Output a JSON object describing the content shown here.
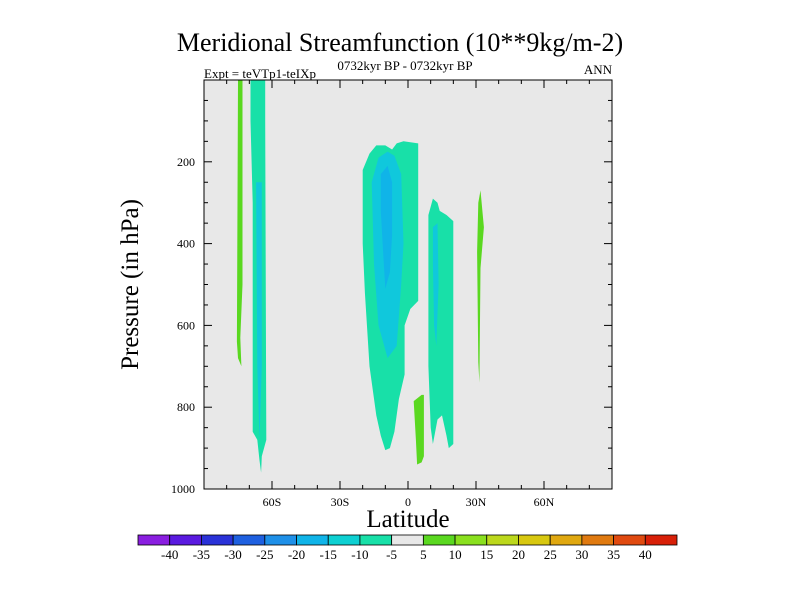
{
  "chart_data": {
    "type": "contour",
    "title": "Meridional Streamfunction (10**9kg/m-2)",
    "left_string": "Expt = teVTp1-teIXp",
    "center_string": "0732kyr BP - 0732kyr BP",
    "right_string": "ANN",
    "xlabel": "Latitude",
    "ylabel": "Pressure (in hPa)",
    "xlim": [
      -90,
      90
    ],
    "ylim": [
      1000,
      0
    ],
    "x_ticks": [
      {
        "value": -60,
        "label": "60S"
      },
      {
        "value": -30,
        "label": "30S"
      },
      {
        "value": 0,
        "label": "0"
      },
      {
        "value": 30,
        "label": "30N"
      },
      {
        "value": 60,
        "label": "60N"
      }
    ],
    "y_ticks": [
      {
        "value": 200,
        "label": "200"
      },
      {
        "value": 400,
        "label": "400"
      },
      {
        "value": 600,
        "label": "600"
      },
      {
        "value": 800,
        "label": "800"
      },
      {
        "value": 1000,
        "label": "1000"
      }
    ],
    "background_color": "#e8e8e8",
    "colorbar": {
      "labels": [
        "-40",
        "-35",
        "-30",
        "-25",
        "-20",
        "-15",
        "-10",
        "-5",
        "5",
        "10",
        "15",
        "20",
        "25",
        "30",
        "35",
        "40"
      ],
      "colors": [
        "#8a1ee0",
        "#5a1ae0",
        "#2a32d8",
        "#1e60e0",
        "#1e90e8",
        "#10b4e8",
        "#0ed0d2",
        "#18e0a8",
        "#e8e8e8",
        "#5ad820",
        "#8ae01e",
        "#bcd81c",
        "#d8c810",
        "#e0a810",
        "#e07a10",
        "#e04a10",
        "#d82008"
      ]
    },
    "regions": [
      {
        "name": "green-band-70s",
        "level": "5 to 10",
        "color": "#5ad820",
        "points": [
          [
            -75,
            0
          ],
          [
            -73,
            0
          ],
          [
            -73,
            500
          ],
          [
            -74,
            630
          ],
          [
            -73.5,
            700
          ],
          [
            -75,
            680
          ],
          [
            -75.5,
            640
          ]
        ]
      },
      {
        "name": "cyan-band-65s",
        "level": "-5 to -10",
        "color": "#18e0a8",
        "points": [
          [
            -69.5,
            0
          ],
          [
            -63,
            0
          ],
          [
            -63,
            100
          ],
          [
            -62.5,
            880
          ],
          [
            -64.5,
            920
          ],
          [
            -64.8,
            960
          ],
          [
            -65.5,
            930
          ],
          [
            -66.5,
            880
          ],
          [
            -68.5,
            860
          ],
          [
            -68.5,
            300
          ],
          [
            -69.5,
            100
          ]
        ]
      },
      {
        "name": "blue-core-65s",
        "level": "-10 to -15",
        "color": "#10c8dc",
        "points": [
          [
            -67,
            250
          ],
          [
            -64.5,
            250
          ],
          [
            -64.5,
            700
          ],
          [
            -65.5,
            880
          ],
          [
            -66.5,
            700
          ]
        ]
      },
      {
        "name": "cyan-cell-10s",
        "level": "-5 to -10",
        "color": "#18e0a8",
        "points": [
          [
            -20,
            220
          ],
          [
            -17,
            180
          ],
          [
            -14,
            160
          ],
          [
            -10,
            160
          ],
          [
            -7,
            170
          ],
          [
            -5,
            155
          ],
          [
            -2,
            150
          ],
          [
            4.5,
            155
          ],
          [
            4.5,
            540
          ],
          [
            1,
            560
          ],
          [
            -1.5,
            600
          ],
          [
            -1.5,
            720
          ],
          [
            -4,
            780
          ],
          [
            -6,
            860
          ],
          [
            -8,
            900
          ],
          [
            -10,
            905
          ],
          [
            -12,
            870
          ],
          [
            -14,
            820
          ],
          [
            -17,
            700
          ],
          [
            -19,
            520
          ],
          [
            -20,
            400
          ]
        ]
      },
      {
        "name": "blue-cell-10s",
        "level": "-10 to -15",
        "color": "#10c8dc",
        "points": [
          [
            -16,
            250
          ],
          [
            -13,
            190
          ],
          [
            -9,
            175
          ],
          [
            -6,
            185
          ],
          [
            -3,
            230
          ],
          [
            -2,
            400
          ],
          [
            -3,
            500
          ],
          [
            -5,
            650
          ],
          [
            -9,
            680
          ],
          [
            -13,
            600
          ],
          [
            -15,
            450
          ]
        ]
      },
      {
        "name": "deep-blue-core-10s",
        "level": "-15 to -20",
        "color": "#10b4e8",
        "points": [
          [
            -12,
            230
          ],
          [
            -9,
            210
          ],
          [
            -7,
            250
          ],
          [
            -7,
            380
          ],
          [
            -8,
            470
          ],
          [
            -10,
            510
          ],
          [
            -11,
            420
          ],
          [
            -12,
            320
          ]
        ]
      },
      {
        "name": "green-patch-5n",
        "level": "5 to 10",
        "color": "#5ad820",
        "points": [
          [
            2.5,
            785
          ],
          [
            6,
            770
          ],
          [
            7,
            770
          ],
          [
            7,
            920
          ],
          [
            6,
            935
          ],
          [
            4,
            940
          ],
          [
            3.5,
            880
          ]
        ]
      },
      {
        "name": "cyan-cell-10n",
        "level": "-5 to -10",
        "color": "#18e0a8",
        "points": [
          [
            9,
            330
          ],
          [
            11,
            290
          ],
          [
            13,
            300
          ],
          [
            14,
            320
          ],
          [
            17,
            330
          ],
          [
            20,
            345
          ],
          [
            20,
            890
          ],
          [
            18,
            900
          ],
          [
            17,
            870
          ],
          [
            15,
            820
          ],
          [
            13,
            830
          ],
          [
            12,
            860
          ],
          [
            11,
            890
          ],
          [
            10,
            850
          ],
          [
            9,
            700
          ]
        ]
      },
      {
        "name": "blue-core-10n",
        "level": "-10 to -15",
        "color": "#10c8dc",
        "points": [
          [
            11,
            360
          ],
          [
            13,
            350
          ],
          [
            13.5,
            500
          ],
          [
            12.5,
            650
          ],
          [
            11.5,
            600
          ],
          [
            11,
            450
          ]
        ]
      },
      {
        "name": "green-band-30n",
        "level": "5 to 10",
        "color": "#5ad820",
        "points": [
          [
            31,
            300
          ],
          [
            32,
            270
          ],
          [
            33.5,
            360
          ],
          [
            32,
            460
          ],
          [
            31.5,
            740
          ],
          [
            31,
            690
          ],
          [
            30.5,
            420
          ]
        ]
      }
    ]
  }
}
